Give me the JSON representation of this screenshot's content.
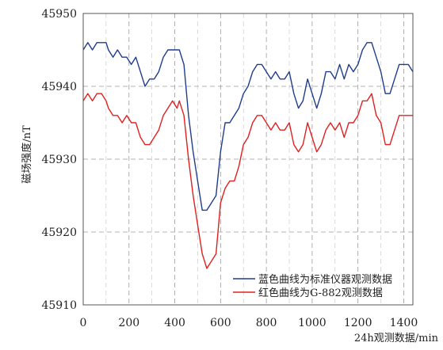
{
  "chart_data": {
    "type": "line",
    "xlabel": "24h观测数据/min",
    "ylabel": "磁场强度/nT",
    "xlim": [
      0,
      1440
    ],
    "ylim": [
      45910,
      45950
    ],
    "x_ticks": [
      0,
      200,
      400,
      600,
      800,
      1000,
      1200,
      1400
    ],
    "y_ticks": [
      45910,
      45920,
      45930,
      45940,
      45950
    ],
    "grid": true,
    "legend_position": "lower-right",
    "series": [
      {
        "name": "蓝色曲线为标准仪器观测数据",
        "color": "#1f3d8c",
        "x": [
          0,
          20,
          40,
          60,
          80,
          100,
          110,
          130,
          150,
          170,
          190,
          210,
          230,
          250,
          270,
          290,
          310,
          330,
          350,
          370,
          390,
          410,
          420,
          440,
          460,
          480,
          500,
          520,
          540,
          560,
          580,
          600,
          620,
          640,
          660,
          680,
          700,
          720,
          740,
          760,
          780,
          800,
          820,
          840,
          860,
          880,
          900,
          920,
          940,
          960,
          980,
          1000,
          1020,
          1040,
          1060,
          1080,
          1100,
          1120,
          1140,
          1160,
          1180,
          1200,
          1220,
          1240,
          1260,
          1280,
          1300,
          1320,
          1340,
          1360,
          1380,
          1400,
          1420,
          1440
        ],
        "y": [
          45945,
          45946,
          45945,
          45946,
          45946,
          45946,
          45945,
          45944,
          45945,
          45944,
          45944,
          45943,
          45944,
          45942,
          45940,
          45941,
          45941,
          45942,
          45944,
          45945,
          45945,
          45945,
          45945,
          45943,
          45936,
          45931,
          45927,
          45923,
          45923,
          45924,
          45925,
          45931,
          45935,
          45935,
          45936,
          45937,
          45939,
          45940,
          45942,
          45943,
          45943,
          45942,
          45941,
          45942,
          45941,
          45941,
          45942,
          45939,
          45937,
          45938,
          45941,
          45939,
          45937,
          45939,
          45942,
          45942,
          45941,
          45943,
          45941,
          45943,
          45942,
          45943,
          45945,
          45946,
          45946,
          45944,
          45942,
          45939,
          45939,
          45941,
          45943,
          45943,
          45943,
          45942
        ]
      },
      {
        "name": "红色曲线为G-882观测数据",
        "color": "#e02020",
        "x": [
          0,
          20,
          40,
          60,
          80,
          100,
          110,
          130,
          150,
          170,
          190,
          210,
          230,
          250,
          270,
          290,
          310,
          330,
          350,
          370,
          390,
          410,
          420,
          440,
          460,
          480,
          500,
          520,
          540,
          560,
          580,
          600,
          620,
          640,
          660,
          680,
          700,
          720,
          740,
          760,
          780,
          800,
          820,
          840,
          860,
          880,
          900,
          920,
          940,
          960,
          980,
          1000,
          1020,
          1040,
          1060,
          1080,
          1100,
          1120,
          1140,
          1160,
          1180,
          1200,
          1220,
          1240,
          1260,
          1280,
          1300,
          1320,
          1340,
          1360,
          1380,
          1400,
          1420,
          1440
        ],
        "y": [
          45938,
          45939,
          45938,
          45939,
          45939,
          45938,
          45937,
          45936,
          45936,
          45935,
          45936,
          45935,
          45935,
          45933,
          45932,
          45932,
          45933,
          45934,
          45936,
          45937,
          45938,
          45937,
          45938,
          45936,
          45930,
          45925,
          45921,
          45917,
          45915,
          45916,
          45917,
          45924,
          45926,
          45927,
          45927,
          45929,
          45932,
          45933,
          45935,
          45936,
          45936,
          45935,
          45934,
          45935,
          45934,
          45934,
          45935,
          45932,
          45931,
          45932,
          45935,
          45933,
          45931,
          45932,
          45934,
          45935,
          45934,
          45935,
          45933,
          45935,
          45935,
          45936,
          45938,
          45938,
          45939,
          45936,
          45935,
          45932,
          45932,
          45934,
          45936,
          45936,
          45936,
          45936
        ]
      }
    ]
  }
}
